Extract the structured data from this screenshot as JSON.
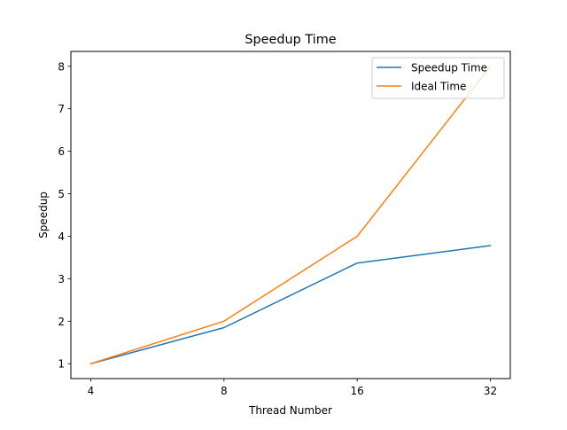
{
  "chart_data": {
    "type": "line",
    "title": "Speedup Time",
    "xlabel": "Thread Number",
    "ylabel": "Speedup",
    "x": [
      4,
      8,
      16,
      32
    ],
    "xticks": [
      "4",
      "8",
      "16",
      "32"
    ],
    "yticks": [
      "1",
      "2",
      "3",
      "4",
      "5",
      "6",
      "7",
      "8"
    ],
    "ylim": [
      0.65,
      8.35
    ],
    "grid": false,
    "legend_position": "top-right",
    "series": [
      {
        "name": "Speedup Time",
        "values": [
          1.0,
          1.85,
          3.37,
          3.78
        ],
        "color": "#1f77b4"
      },
      {
        "name": "Ideal Time",
        "values": [
          1.0,
          2.0,
          4.0,
          8.0
        ],
        "color": "#ff7f0e"
      }
    ]
  }
}
